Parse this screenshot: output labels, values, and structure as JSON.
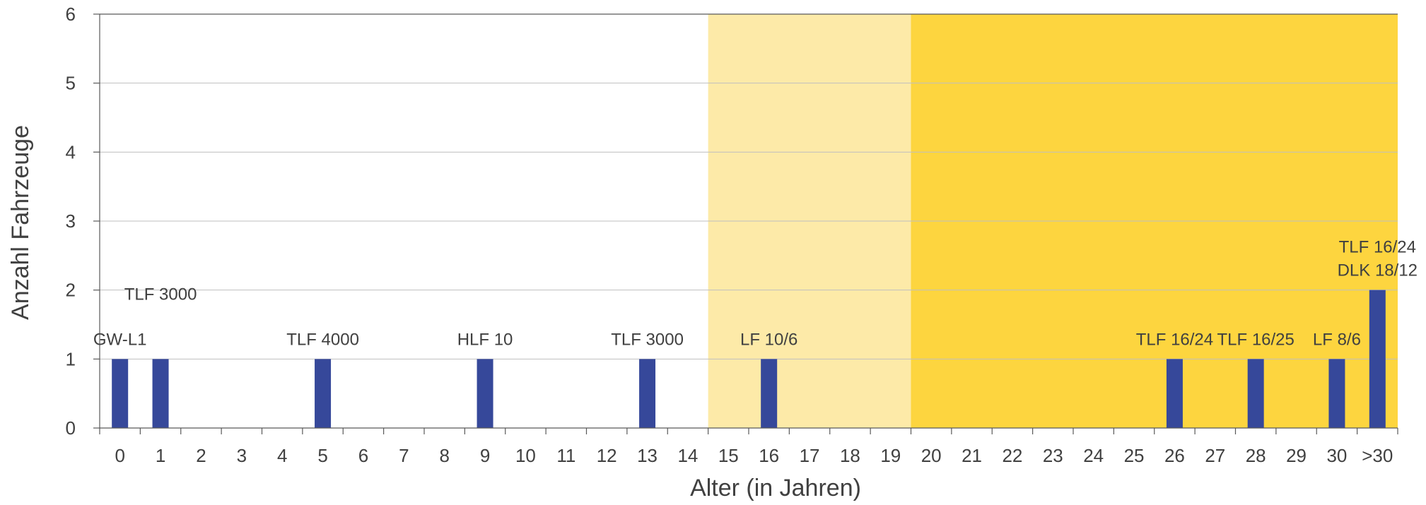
{
  "chart_data": {
    "type": "bar",
    "xlabel": "Alter (in Jahren)",
    "ylabel": "Anzahl Fahrzeuge",
    "ylim": [
      0,
      6
    ],
    "yticks": [
      "0",
      "1",
      "2",
      "3",
      "4",
      "5",
      "6"
    ],
    "grid": true,
    "categories": [
      "0",
      "1",
      "2",
      "3",
      "4",
      "5",
      "6",
      "7",
      "8",
      "9",
      "10",
      "11",
      "12",
      "13",
      "14",
      "15",
      "16",
      "17",
      "18",
      "19",
      "20",
      "21",
      "22",
      "23",
      "24",
      "25",
      "26",
      "27",
      "28",
      "29",
      "30",
      ">30"
    ],
    "values": [
      1,
      1,
      0,
      0,
      0,
      1,
      0,
      0,
      0,
      1,
      0,
      0,
      0,
      1,
      0,
      0,
      1,
      0,
      0,
      0,
      0,
      0,
      0,
      0,
      0,
      0,
      1,
      0,
      1,
      0,
      1,
      2
    ],
    "bar_color": "#36489a",
    "bar_labels": [
      {
        "category": "0",
        "lines": [
          "GW-L1"
        ]
      },
      {
        "category": "1",
        "lines": [
          "TLF 3000"
        ]
      },
      {
        "category": "5",
        "lines": [
          "TLF 4000"
        ]
      },
      {
        "category": "9",
        "lines": [
          "HLF 10"
        ]
      },
      {
        "category": "13",
        "lines": [
          "TLF 3000"
        ]
      },
      {
        "category": "16",
        "lines": [
          "LF 10/6"
        ]
      },
      {
        "category": "26",
        "lines": [
          "TLF 16/24"
        ]
      },
      {
        "category": "28",
        "lines": [
          "TLF 16/25"
        ]
      },
      {
        "category": "30",
        "lines": [
          "LF 8/6"
        ]
      },
      {
        "category": ">30",
        "lines": [
          "TLF 16/24",
          "DLK 18/12"
        ]
      }
    ],
    "bands": [
      {
        "from": "15",
        "to": "19",
        "color": "#fdeaa8"
      },
      {
        "from": "20",
        "to": ">30",
        "color": "#fdd53f"
      }
    ]
  }
}
